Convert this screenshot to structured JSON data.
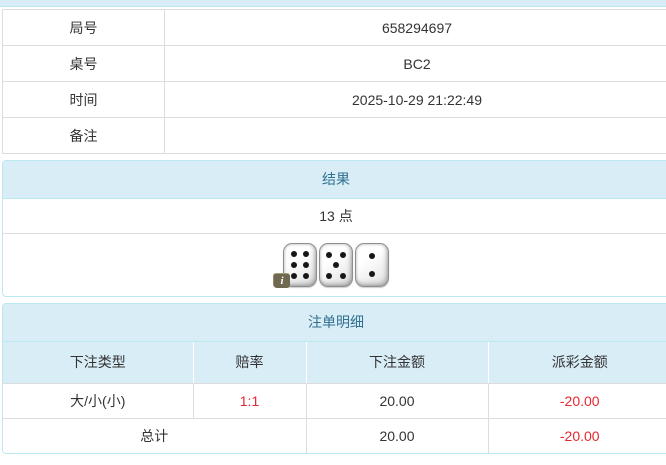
{
  "colors": {
    "header_bg": "#d9edf7",
    "header_text": "#31708f",
    "panel_border": "#bce8f1",
    "grid_border": "#dddddd",
    "text": "#333333",
    "negative": "#e8262d"
  },
  "info": {
    "rows": [
      {
        "label": "局号",
        "value": "658294697"
      },
      {
        "label": "桌号",
        "value": "BC2"
      },
      {
        "label": "时间",
        "value": "2025-10-29 21:22:49"
      },
      {
        "label": "备注",
        "value": ""
      }
    ]
  },
  "result": {
    "title": "结果",
    "points": "13 点",
    "dice": {
      "values": [
        6,
        5,
        2
      ]
    },
    "info_badge": "i"
  },
  "bets": {
    "title": "注单明细",
    "columns": [
      "下注类型",
      "赔率",
      "下注金额",
      "派彩金额"
    ],
    "rows": [
      {
        "type": "大/小(小)",
        "odds": "1:1",
        "amount": "20.00",
        "payout": "-20.00"
      }
    ],
    "total": {
      "label": "总计",
      "amount": "20.00",
      "payout": "-20.00"
    }
  }
}
